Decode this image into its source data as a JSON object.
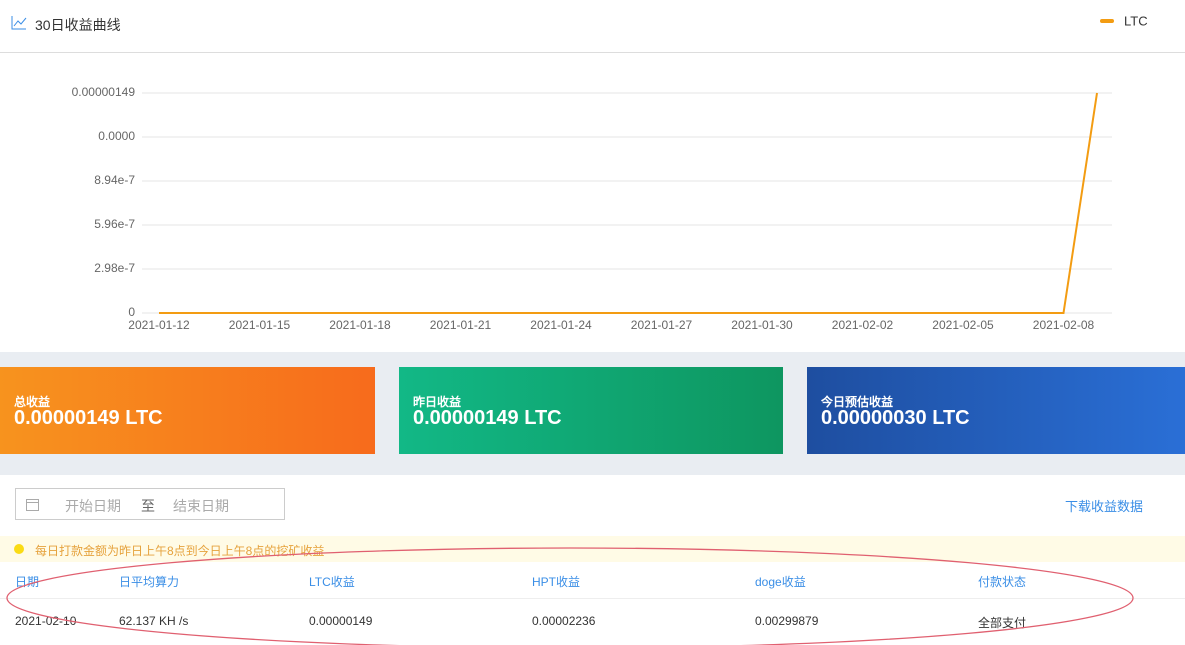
{
  "chart_data": {
    "type": "line",
    "title": "30日收益曲线",
    "categories": [
      "2021-01-12",
      null,
      null,
      "2021-01-15",
      null,
      null,
      "2021-01-18",
      null,
      null,
      "2021-01-21",
      null,
      null,
      "2021-01-24",
      null,
      null,
      "2021-01-27",
      null,
      null,
      "2021-01-30",
      null,
      null,
      "2021-02-02",
      null,
      null,
      "2021-02-05",
      null,
      null,
      "2021-02-08",
      null
    ],
    "series": [
      {
        "name": "LTC",
        "color": "#f39c12",
        "values": [
          0,
          0,
          0,
          0,
          0,
          0,
          0,
          0,
          0,
          0,
          0,
          0,
          0,
          0,
          0,
          0,
          0,
          0,
          0,
          0,
          0,
          0,
          0,
          0,
          0,
          0,
          0,
          0,
          1.49e-06
        ]
      }
    ],
    "ylim": [
      0,
      1.49e-06
    ],
    "yticks": [
      0,
      2.98e-07,
      5.96e-07,
      8.94e-07,
      {
        "value": 1.192e-06,
        "label": "0.0000"
      },
      1.49e-06
    ],
    "grid": true,
    "legend": "top-right"
  },
  "cards": [
    {
      "label": "总收益",
      "value": "0.00000149 LTC"
    },
    {
      "label": "昨日收益",
      "value": "0.00000149 LTC"
    },
    {
      "label": "今日预估收益",
      "value": "0.00000030 LTC"
    }
  ],
  "filter": {
    "start": "开始日期",
    "sep": "至",
    "end": "结束日期",
    "download": "下载收益数据"
  },
  "notice": "每日打款金额为昨日上午8点到今日上午8点的挖矿收益",
  "table": {
    "headers": [
      "日期",
      "日平均算力",
      "LTC收益",
      "HPT收益",
      "doge收益",
      "付款状态"
    ],
    "rows": [
      [
        "2021-02-10",
        "62.137 KH /s",
        "0.00000149",
        "0.00002236",
        "0.00299879",
        "全部支付"
      ]
    ]
  }
}
